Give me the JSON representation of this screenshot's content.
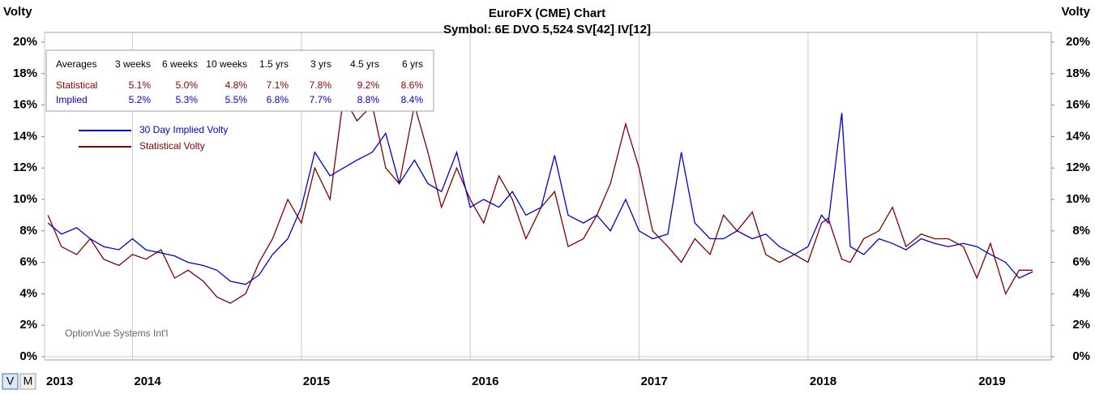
{
  "chart_data": {
    "type": "line",
    "title": "EuroFX (CME) Chart",
    "subtitle": "Symbol: 6E  DVO 5,524  SV[42]  IV[12]",
    "y_label": "Volty",
    "y2_label": "Volty",
    "watermark": "OptionVue Systems Int'l",
    "x": [
      2013.5,
      2013.58,
      2013.67,
      2013.75,
      2013.83,
      2013.92,
      2014.0,
      2014.08,
      2014.17,
      2014.25,
      2014.33,
      2014.42,
      2014.5,
      2014.58,
      2014.67,
      2014.75,
      2014.83,
      2014.92,
      2015.0,
      2015.08,
      2015.17,
      2015.25,
      2015.33,
      2015.42,
      2015.5,
      2015.58,
      2015.67,
      2015.75,
      2015.83,
      2015.92,
      2016.0,
      2016.08,
      2016.17,
      2016.25,
      2016.33,
      2016.42,
      2016.5,
      2016.58,
      2016.67,
      2016.75,
      2016.83,
      2016.92,
      2017.0,
      2017.08,
      2017.17,
      2017.25,
      2017.33,
      2017.42,
      2017.5,
      2017.58,
      2017.67,
      2017.75,
      2017.83,
      2017.92,
      2018.0,
      2018.08,
      2018.12,
      2018.2,
      2018.25,
      2018.33,
      2018.42,
      2018.5,
      2018.58,
      2018.67,
      2018.75,
      2018.83,
      2018.92,
      2019.0,
      2019.08,
      2019.17,
      2019.25,
      2019.33
    ],
    "series": [
      {
        "name": "30 Day Implied Volty",
        "color": "#0000cc",
        "values": [
          8.5,
          7.8,
          8.2,
          7.5,
          7.0,
          6.8,
          7.5,
          6.8,
          6.6,
          6.4,
          6.0,
          5.8,
          5.5,
          4.8,
          4.6,
          5.2,
          6.5,
          7.5,
          9.5,
          13.0,
          11.5,
          12.0,
          12.5,
          13.0,
          14.2,
          11.0,
          12.5,
          11.0,
          10.5,
          13.0,
          9.5,
          10.0,
          9.5,
          10.5,
          9.0,
          9.5,
          12.8,
          9.0,
          8.5,
          9.0,
          8.0,
          10.0,
          8.0,
          7.5,
          7.8,
          13.0,
          8.5,
          7.5,
          7.5,
          8.0,
          7.5,
          7.8,
          7.0,
          6.5,
          7.0,
          9.0,
          8.5,
          15.5,
          7.0,
          6.5,
          7.5,
          7.2,
          6.8,
          7.5,
          7.2,
          7.0,
          7.2,
          7.0,
          6.5,
          6.0,
          5.0,
          5.4
        ]
      },
      {
        "name": "Statistical Volty",
        "color": "#800000",
        "values": [
          9.0,
          7.0,
          6.5,
          7.5,
          6.2,
          5.8,
          6.5,
          6.2,
          6.8,
          5.0,
          5.5,
          4.8,
          3.8,
          3.4,
          4.0,
          6.0,
          7.5,
          10.0,
          8.5,
          12.0,
          10.0,
          16.5,
          15.0,
          16.0,
          12.0,
          11.0,
          16.0,
          13.0,
          9.5,
          12.0,
          10.0,
          8.5,
          11.5,
          10.0,
          7.5,
          9.5,
          10.5,
          7.0,
          7.5,
          9.0,
          11.0,
          14.8,
          12.0,
          8.0,
          7.0,
          6.0,
          7.5,
          6.5,
          9.0,
          8.0,
          9.2,
          6.5,
          6.0,
          6.5,
          6.0,
          8.5,
          8.8,
          6.2,
          6.0,
          7.5,
          8.0,
          9.5,
          7.0,
          7.8,
          7.5,
          7.5,
          7.0,
          5.0,
          7.2,
          4.0,
          5.5,
          5.5
        ]
      }
    ],
    "xlim": [
      2013.48,
      2019.44
    ],
    "xticks": [
      {
        "value": 2013.48,
        "label": "2013"
      },
      2014,
      2015,
      2016,
      2017,
      2018,
      2019
    ],
    "ylim": [
      0,
      20
    ],
    "yticks": [
      {
        "value": 0,
        "label": "0%"
      },
      {
        "value": 2,
        "label": "2%"
      },
      {
        "value": 4,
        "label": "4%"
      },
      {
        "value": 6,
        "label": "6%"
      },
      {
        "value": 8,
        "label": "8%"
      },
      {
        "value": 10,
        "label": "10%"
      },
      {
        "value": 12,
        "label": "12%"
      },
      {
        "value": 14,
        "label": "14%"
      },
      {
        "value": 16,
        "label": "16%"
      },
      {
        "value": 18,
        "label": "18%"
      },
      {
        "value": 20,
        "label": "20%"
      }
    ],
    "y2lim": [
      0,
      20
    ],
    "y2ticks": [
      {
        "value": 0,
        "label": "0%"
      },
      {
        "value": 2,
        "label": "2%"
      },
      {
        "value": 4,
        "label": "4%"
      },
      {
        "value": 6,
        "label": "6%"
      },
      {
        "value": 8,
        "label": "8%"
      },
      {
        "value": 10,
        "label": "10%"
      },
      {
        "value": 12,
        "label": "12%"
      },
      {
        "value": 14,
        "label": "14%"
      },
      {
        "value": 16,
        "label": "16%"
      },
      {
        "value": 18,
        "label": "18%"
      },
      {
        "value": 20,
        "label": "20%"
      }
    ],
    "grid": true
  },
  "averages_table": {
    "header": [
      "Averages",
      "3 weeks",
      "6 weeks",
      "10 weeks",
      "1.5 yrs",
      "3 yrs",
      "4.5 yrs",
      "6 yrs"
    ],
    "rows": [
      {
        "label": "Statistical",
        "color": "#8b0000",
        "values": [
          "5.1%",
          "5.0%",
          "4.8%",
          "7.1%",
          "7.8%",
          "9.2%",
          "8.6%"
        ]
      },
      {
        "label": "Implied",
        "color": "#0000cc",
        "values": [
          "5.2%",
          "5.3%",
          "5.5%",
          "6.8%",
          "7.7%",
          "8.8%",
          "8.4%"
        ]
      }
    ]
  },
  "buttons": [
    "V",
    "M"
  ]
}
